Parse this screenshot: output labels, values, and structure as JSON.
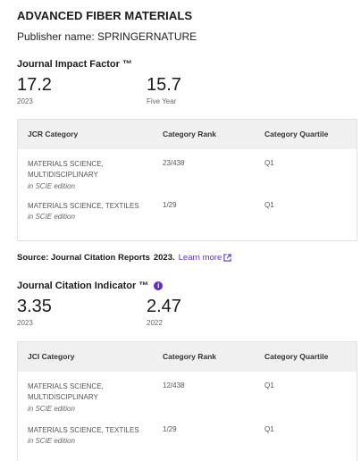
{
  "journal": {
    "title": "ADVANCED FIBER MATERIALS",
    "publisher": "Publisher name: SPRINGERNATURE"
  },
  "jif": {
    "title": "Journal Impact Factor ™",
    "value_current": "17.2",
    "label_current": "2023",
    "value_five_year": "15.7",
    "label_five_year": "Five Year",
    "table": {
      "headers": [
        "JCR Category",
        "Category Rank",
        "Category Quartile"
      ],
      "rows": [
        {
          "category": "MATERIALS SCIENCE, MULTIDISCIPLINARY",
          "edition": "in SCIE edition",
          "rank": "23/438",
          "quartile": "Q1"
        },
        {
          "category": "MATERIALS SCIENCE, TEXTILES",
          "edition": "in SCIE edition",
          "rank": "1/29",
          "quartile": "Q1"
        }
      ]
    }
  },
  "source": {
    "label": "Source: Journal Citation Reports",
    "year": "2023.",
    "link": "Learn more"
  },
  "jci": {
    "title": "Journal Citation Indicator ™",
    "info_icon": "i",
    "value_current": "3.35",
    "label_current": "2023",
    "value_prev": "2.47",
    "label_prev": "2022",
    "table": {
      "headers": [
        "JCI Category",
        "Category Rank",
        "Category Quartile"
      ],
      "rows": [
        {
          "category": "MATERIALS SCIENCE, MULTIDISCIPLINARY",
          "edition": "in SCIE edition",
          "rank": "12/438",
          "quartile": "Q1"
        },
        {
          "category": "MATERIALS SCIENCE, TEXTILES",
          "edition": "in SCIE edition",
          "rank": "1/29",
          "quartile": "Q1"
        }
      ]
    }
  },
  "colors": {
    "accent": "#5e33bf",
    "header_bg": "#f0f0f0",
    "border": "#e2e2e2"
  }
}
